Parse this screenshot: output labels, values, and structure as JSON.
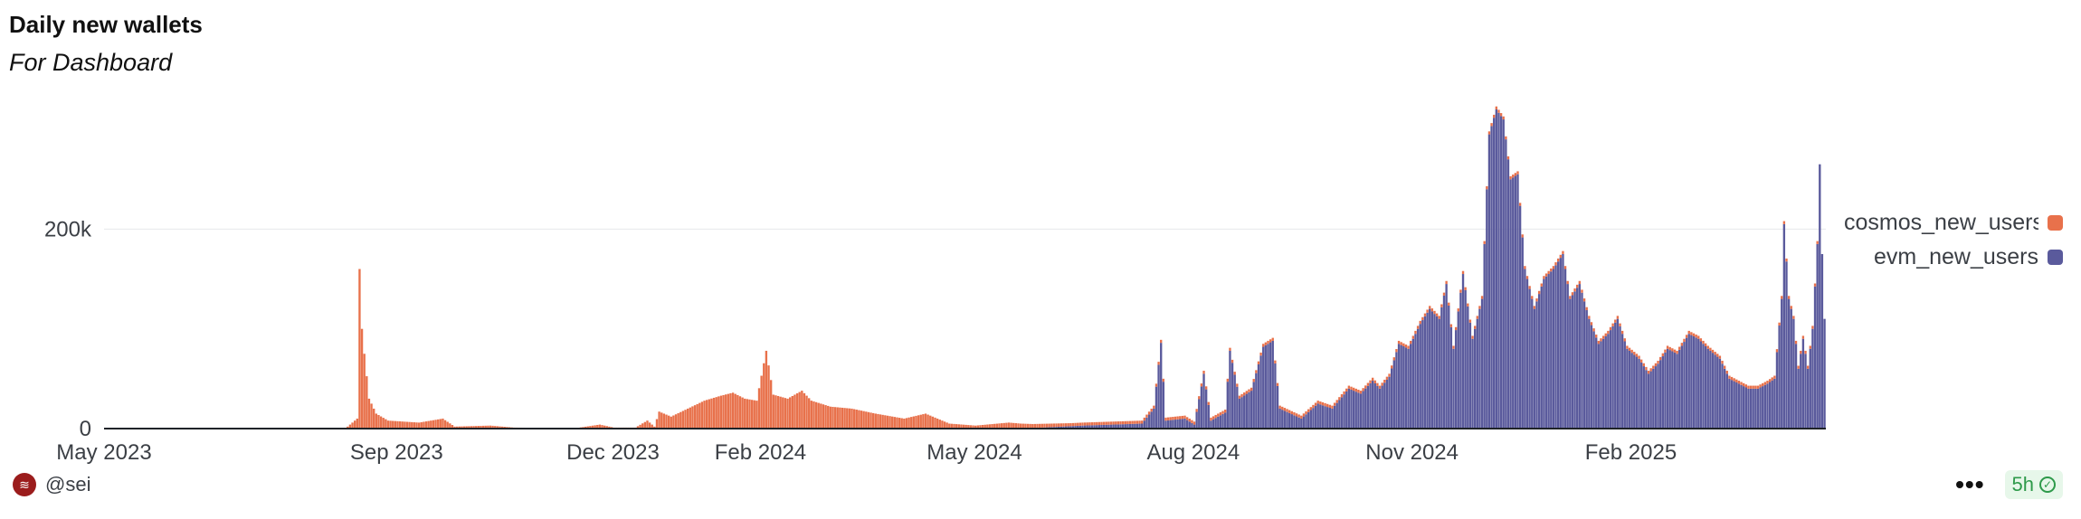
{
  "header": {
    "title": "Daily new wallets",
    "subtitle": "For Dashboard"
  },
  "footer": {
    "handle": "@sei",
    "more_label": "•••",
    "age": "5h",
    "check_icon": "check-circle-icon",
    "logo_icon": "sei-logo-icon"
  },
  "colors": {
    "cosmos": "#e8714b",
    "evm": "#5a5a9c",
    "accent_green": "#2e9a4a"
  },
  "chart_data": {
    "type": "bar",
    "stacked": true,
    "title": "Daily new wallets",
    "subtitle": "For Dashboard",
    "x_ticks": [
      "May 2023",
      "Sep 2023",
      "Dec 2023",
      "Feb 2024",
      "May 2024",
      "Aug 2024",
      "Nov 2024",
      "Feb 2025"
    ],
    "y_ticks": [
      "0",
      "200k"
    ],
    "ylim": [
      0,
      330000
    ],
    "legend": [
      "cosmos_new_users",
      "evm_new_users"
    ],
    "legend_position": "right",
    "grid": "horizontal",
    "series": [
      {
        "name": "cosmos_new_users",
        "color": "#e8714b",
        "points": [
          [
            "2023-05-01",
            0
          ],
          [
            "2023-08-10",
            0
          ],
          [
            "2023-08-15",
            10000
          ],
          [
            "2023-08-16",
            160000
          ],
          [
            "2023-08-17",
            100000
          ],
          [
            "2023-08-18",
            75000
          ],
          [
            "2023-08-20",
            30000
          ],
          [
            "2023-08-23",
            15000
          ],
          [
            "2023-08-28",
            8000
          ],
          [
            "2023-09-10",
            6000
          ],
          [
            "2023-09-20",
            10000
          ],
          [
            "2023-09-25",
            2000
          ],
          [
            "2023-10-10",
            3000
          ],
          [
            "2023-10-20",
            1000
          ],
          [
            "2023-11-15",
            500
          ],
          [
            "2023-11-25",
            4000
          ],
          [
            "2023-12-01",
            1000
          ],
          [
            "2023-12-10",
            1000
          ],
          [
            "2023-12-15",
            8000
          ],
          [
            "2023-12-18",
            2000
          ],
          [
            "2023-12-20",
            17000
          ],
          [
            "2023-12-25",
            12000
          ],
          [
            "2024-01-01",
            20000
          ],
          [
            "2024-01-08",
            28000
          ],
          [
            "2024-01-15",
            33000
          ],
          [
            "2024-01-20",
            36000
          ],
          [
            "2024-01-25",
            30000
          ],
          [
            "2024-01-30",
            28000
          ],
          [
            "2024-02-03",
            78000
          ],
          [
            "2024-02-06",
            34000
          ],
          [
            "2024-02-12",
            30000
          ],
          [
            "2024-02-18",
            38000
          ],
          [
            "2024-02-22",
            28000
          ],
          [
            "2024-03-01",
            22000
          ],
          [
            "2024-03-10",
            20000
          ],
          [
            "2024-03-20",
            15000
          ],
          [
            "2024-04-01",
            10000
          ],
          [
            "2024-04-10",
            15000
          ],
          [
            "2024-04-20",
            5000
          ],
          [
            "2024-05-01",
            3000
          ],
          [
            "2024-05-15",
            6000
          ],
          [
            "2024-05-25",
            4000
          ],
          [
            "2024-06-10",
            3000
          ],
          [
            "2024-07-01",
            3000
          ],
          [
            "2024-08-01",
            3000
          ],
          [
            "2024-08-20",
            3000
          ],
          [
            "2024-09-10",
            3000
          ],
          [
            "2024-10-01",
            3000
          ],
          [
            "2024-11-01",
            3000
          ],
          [
            "2024-12-01",
            3000
          ],
          [
            "2025-01-01",
            3000
          ],
          [
            "2025-02-01",
            3000
          ],
          [
            "2025-03-01",
            3000
          ],
          [
            "2025-04-01",
            3000
          ],
          [
            "2025-04-20",
            3000
          ]
        ]
      },
      {
        "name": "evm_new_users",
        "color": "#5a5a9c",
        "points": [
          [
            "2023-05-01",
            0
          ],
          [
            "2024-05-20",
            0
          ],
          [
            "2024-06-15",
            3000
          ],
          [
            "2024-07-10",
            5000
          ],
          [
            "2024-07-15",
            20000
          ],
          [
            "2024-07-18",
            86000
          ],
          [
            "2024-07-20",
            8000
          ],
          [
            "2024-07-28",
            10000
          ],
          [
            "2024-08-01",
            4000
          ],
          [
            "2024-08-05",
            55000
          ],
          [
            "2024-08-08",
            8000
          ],
          [
            "2024-08-14",
            16000
          ],
          [
            "2024-08-16",
            78000
          ],
          [
            "2024-08-20",
            30000
          ],
          [
            "2024-08-25",
            38000
          ],
          [
            "2024-08-30",
            82000
          ],
          [
            "2024-09-03",
            88000
          ],
          [
            "2024-09-06",
            20000
          ],
          [
            "2024-09-15",
            10000
          ],
          [
            "2024-09-22",
            25000
          ],
          [
            "2024-09-28",
            20000
          ],
          [
            "2024-10-05",
            40000
          ],
          [
            "2024-10-10",
            35000
          ],
          [
            "2024-10-15",
            48000
          ],
          [
            "2024-10-18",
            40000
          ],
          [
            "2024-10-22",
            52000
          ],
          [
            "2024-10-26",
            85000
          ],
          [
            "2024-10-30",
            80000
          ],
          [
            "2024-11-04",
            105000
          ],
          [
            "2024-11-08",
            120000
          ],
          [
            "2024-11-12",
            110000
          ],
          [
            "2024-11-15",
            145000
          ],
          [
            "2024-11-18",
            80000
          ],
          [
            "2024-11-22",
            155000
          ],
          [
            "2024-11-26",
            90000
          ],
          [
            "2024-11-30",
            130000
          ],
          [
            "2024-12-03",
            295000
          ],
          [
            "2024-12-06",
            320000
          ],
          [
            "2024-12-09",
            310000
          ],
          [
            "2024-12-12",
            250000
          ],
          [
            "2024-12-15",
            255000
          ],
          [
            "2024-12-18",
            160000
          ],
          [
            "2024-12-22",
            120000
          ],
          [
            "2024-12-26",
            150000
          ],
          [
            "2024-12-30",
            160000
          ],
          [
            "2025-01-03",
            175000
          ],
          [
            "2025-01-06",
            130000
          ],
          [
            "2025-01-10",
            145000
          ],
          [
            "2025-01-14",
            110000
          ],
          [
            "2025-01-18",
            85000
          ],
          [
            "2025-01-22",
            95000
          ],
          [
            "2025-01-26",
            110000
          ],
          [
            "2025-01-30",
            80000
          ],
          [
            "2025-02-04",
            70000
          ],
          [
            "2025-02-08",
            55000
          ],
          [
            "2025-02-12",
            65000
          ],
          [
            "2025-02-16",
            80000
          ],
          [
            "2025-02-20",
            75000
          ],
          [
            "2025-02-25",
            95000
          ],
          [
            "2025-03-01",
            90000
          ],
          [
            "2025-03-05",
            80000
          ],
          [
            "2025-03-10",
            70000
          ],
          [
            "2025-03-14",
            50000
          ],
          [
            "2025-03-18",
            45000
          ],
          [
            "2025-03-22",
            40000
          ],
          [
            "2025-03-26",
            40000
          ],
          [
            "2025-03-30",
            45000
          ],
          [
            "2025-04-02",
            50000
          ],
          [
            "2025-04-05",
            130000
          ],
          [
            "2025-04-06",
            205000
          ],
          [
            "2025-04-08",
            130000
          ],
          [
            "2025-04-10",
            110000
          ],
          [
            "2025-04-12",
            60000
          ],
          [
            "2025-04-14",
            90000
          ],
          [
            "2025-04-16",
            60000
          ],
          [
            "2025-04-18",
            100000
          ],
          [
            "2025-04-20",
            185000
          ],
          [
            "2025-04-21",
            265000
          ],
          [
            "2025-04-22",
            175000
          ],
          [
            "2025-04-23",
            110000
          ]
        ]
      }
    ]
  }
}
